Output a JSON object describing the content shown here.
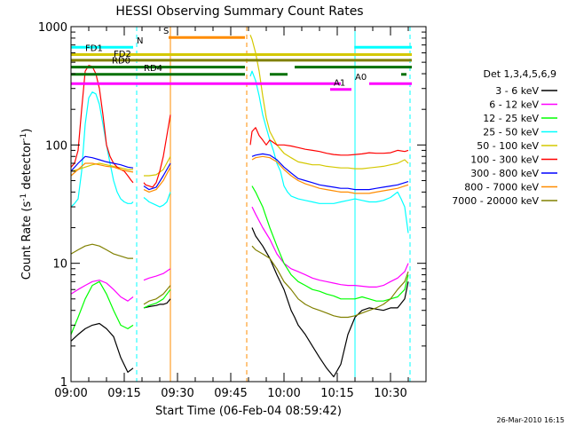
{
  "chart_data": {
    "type": "line",
    "title": "HESSI Observing Summary Count Rates",
    "xlabel": "Start Time (06-Feb-04 08:59:42)",
    "ylabel_main": "Count Rate (s",
    "ylabel_sup1": "-1",
    "ylabel_mid": " detector",
    "ylabel_sup2": "-1",
    "ylabel_end": ")",
    "yscale": "log",
    "ylim": [
      1,
      1000
    ],
    "xlim_minutes": [
      0,
      100
    ],
    "x_ticks": [
      "09:00",
      "09:15",
      "09:30",
      "09:45",
      "10:00",
      "10:15",
      "10:30"
    ],
    "y_ticks": [
      "1",
      "10",
      "100",
      "1000"
    ],
    "timestamp": "26-Mar-2010 16:15",
    "legend": {
      "title": "Det 1,3,4,5,6,9",
      "entries": [
        {
          "label": "3 - 6 keV",
          "color": "#000000"
        },
        {
          "label": "6 - 12 keV",
          "color": "#ff00ff"
        },
        {
          "label": "12 - 25 keV",
          "color": "#00ff00"
        },
        {
          "label": "25 - 50 keV",
          "color": "#00ffff"
        },
        {
          "label": "50 - 100 keV",
          "color": "#d4c800"
        },
        {
          "label": "100 - 300 keV",
          "color": "#ff0000"
        },
        {
          "label": "300 - 800 keV",
          "color": "#0000ff"
        },
        {
          "label": "800 - 7000 keV",
          "color": "#ff8c00"
        },
        {
          "label": "7000 - 20000 keV",
          "color": "#808000"
        }
      ]
    },
    "flag_bars": [
      {
        "label": "N",
        "color": "#00ffff",
        "y": 670,
        "segments": [
          [
            0,
            17.5
          ],
          [
            79.8,
            96
          ]
        ]
      },
      {
        "label": "S",
        "color": "#ff8c00",
        "y": 810,
        "segments": [
          [
            27.5,
            49
          ]
        ]
      },
      {
        "label": "FD1",
        "color": "#d4c800",
        "y": 580,
        "segments": [
          [
            0,
            96
          ]
        ]
      },
      {
        "label": "FD2",
        "color": "#808000",
        "y": 520,
        "segments": [
          [
            0,
            96
          ]
        ]
      },
      {
        "label": "RD0",
        "color": "#007000",
        "y": 455,
        "segments": [
          [
            0,
            49
          ],
          [
            63,
            96
          ]
        ]
      },
      {
        "label": "RD4",
        "color": "#007000",
        "y": 395,
        "segments": [
          [
            0,
            49
          ],
          [
            56,
            61
          ],
          [
            93,
            94.5
          ]
        ]
      },
      {
        "label": "A0",
        "color": "#ff00ff",
        "y": 330,
        "segments": [
          [
            0,
            76
          ],
          [
            84,
            96
          ]
        ]
      },
      {
        "label": "A1",
        "color": "#ff00ff",
        "y": 295,
        "segments": [
          [
            73,
            79
          ]
        ]
      }
    ],
    "vertical_markers": [
      {
        "x": 18.5,
        "color": "#00ffff",
        "style": "dashed"
      },
      {
        "x": 28,
        "color": "#ff8c00",
        "style": "solid"
      },
      {
        "x": 49.5,
        "color": "#ff8c00",
        "style": "dashed"
      },
      {
        "x": 80,
        "color": "#00ffff",
        "style": "solid"
      },
      {
        "x": 95.5,
        "color": "#00ffff",
        "style": "dashed"
      }
    ],
    "series": [
      {
        "name": "3 - 6 keV",
        "color": "#000000",
        "x": [
          0,
          2,
          4,
          6,
          8,
          10,
          12,
          14,
          16,
          17.5,
          18,
          19,
          20,
          20.5,
          22,
          24,
          25,
          26,
          27,
          28,
          50,
          51,
          52,
          54,
          56,
          58,
          60,
          62,
          63,
          64,
          66,
          68,
          70,
          72,
          74,
          76,
          78,
          80,
          82,
          84,
          86,
          88,
          90,
          92,
          94,
          95
        ],
        "y": [
          2.2,
          2.5,
          2.8,
          3.0,
          3.1,
          2.8,
          2.4,
          1.6,
          1.2,
          1.3,
          null,
          null,
          null,
          4.2,
          4.3,
          4.4,
          4.5,
          4.5,
          4.6,
          5.0,
          null,
          20,
          17,
          14,
          11,
          8,
          6,
          4,
          3.5,
          3,
          2.5,
          2,
          1.6,
          1.3,
          1.1,
          1.4,
          2.5,
          3.5,
          4,
          4.2,
          4.1,
          4.0,
          4.2,
          4.2,
          5.0,
          7.0
        ]
      },
      {
        "name": "6 - 12 keV",
        "color": "#ff00ff",
        "x": [
          0,
          2,
          4,
          6,
          8,
          10,
          12,
          14,
          16,
          17.5,
          18,
          19,
          20,
          20.5,
          22,
          24,
          26,
          28,
          50,
          51,
          52,
          54,
          56,
          58,
          60,
          62,
          64,
          66,
          68,
          70,
          72,
          74,
          76,
          78,
          80,
          82,
          84,
          86,
          88,
          90,
          92,
          94,
          95
        ],
        "y": [
          5.5,
          6.0,
          6.5,
          7.0,
          7.2,
          6.8,
          6.0,
          5.2,
          4.8,
          5.2,
          null,
          null,
          null,
          7.2,
          7.5,
          7.8,
          8.2,
          9.0,
          null,
          30,
          26,
          20,
          16,
          12,
          10,
          9,
          8.5,
          8.0,
          7.5,
          7.2,
          7.0,
          6.8,
          6.6,
          6.5,
          6.5,
          6.4,
          6.3,
          6.3,
          6.5,
          7.0,
          7.5,
          8.5,
          10
        ]
      },
      {
        "name": "12 - 25 keV",
        "color": "#00ff00",
        "x": [
          0,
          2,
          4,
          6,
          8,
          10,
          12,
          14,
          16,
          17.5,
          18,
          19,
          20,
          20.5,
          22,
          24,
          26,
          28,
          50,
          51,
          52,
          54,
          56,
          58,
          60,
          62,
          64,
          66,
          68,
          70,
          72,
          74,
          76,
          78,
          80,
          82,
          84,
          86,
          88,
          90,
          92,
          94,
          95
        ],
        "y": [
          2.5,
          3.5,
          5.0,
          6.5,
          7.0,
          5.5,
          4.0,
          3.0,
          2.8,
          3.0,
          null,
          null,
          null,
          4.2,
          4.4,
          4.6,
          5.0,
          6.0,
          null,
          45,
          40,
          30,
          20,
          14,
          10,
          8,
          7,
          6.5,
          6,
          5.8,
          5.5,
          5.3,
          5.0,
          5.0,
          5.0,
          5.2,
          5.0,
          4.8,
          4.8,
          5.0,
          5.2,
          6.0,
          8.0
        ]
      },
      {
        "name": "25 - 50 keV",
        "color": "#00ffff",
        "x": [
          0,
          1,
          2,
          3,
          4,
          5,
          6,
          7,
          8,
          9,
          10,
          11,
          12,
          13,
          14,
          15,
          16,
          17,
          17.5,
          18,
          19,
          20,
          20.5,
          21,
          22,
          23,
          24,
          25,
          26,
          27,
          28,
          50,
          50.5,
          51,
          52,
          53,
          54,
          55,
          56,
          57,
          58,
          59,
          60,
          61,
          62,
          64,
          66,
          68,
          70,
          72,
          74,
          76,
          78,
          80,
          82,
          84,
          86,
          88,
          90,
          92,
          93,
          94,
          95
        ],
        "y": [
          30,
          32,
          35,
          60,
          150,
          250,
          280,
          270,
          220,
          150,
          100,
          70,
          50,
          40,
          35,
          33,
          32,
          32,
          33,
          null,
          null,
          null,
          36,
          35,
          33,
          32,
          31,
          30,
          31,
          33,
          40,
          null,
          380,
          420,
          350,
          260,
          180,
          140,
          110,
          90,
          70,
          60,
          45,
          40,
          37,
          35,
          34,
          33,
          32,
          32,
          32,
          33,
          34,
          35,
          34,
          33,
          33,
          34,
          36,
          40,
          35,
          30,
          18
        ]
      },
      {
        "name": "50 - 100 keV",
        "color": "#d4c800",
        "x": [
          0,
          2,
          4,
          6,
          8,
          10,
          12,
          14,
          16,
          17.5,
          18,
          19,
          20,
          20.5,
          22,
          24,
          26,
          28,
          50,
          50.5,
          51,
          52,
          53,
          54,
          55,
          56,
          58,
          60,
          62,
          64,
          66,
          68,
          70,
          72,
          74,
          76,
          78,
          80,
          82,
          84,
          86,
          88,
          90,
          92,
          94,
          95
        ],
        "y": [
          60,
          62,
          65,
          68,
          70,
          68,
          66,
          64,
          62,
          62,
          null,
          null,
          null,
          55,
          55,
          56,
          62,
          80,
          null,
          850,
          780,
          600,
          420,
          260,
          170,
          130,
          100,
          85,
          78,
          72,
          70,
          68,
          68,
          66,
          65,
          64,
          64,
          63,
          63,
          64,
          65,
          66,
          68,
          70,
          75,
          70
        ]
      },
      {
        "name": "100 - 300 keV",
        "color": "#ff0000",
        "x": [
          0,
          1,
          2,
          3,
          4,
          5,
          6,
          7,
          8,
          9,
          10,
          11,
          12,
          13,
          14,
          15,
          16,
          17,
          17.5,
          18,
          19,
          20,
          20.5,
          21,
          22,
          23,
          24,
          25,
          26,
          27,
          28,
          50,
          50.5,
          51,
          52,
          53,
          54,
          55,
          56,
          57,
          58,
          60,
          62,
          64,
          66,
          68,
          70,
          72,
          74,
          76,
          78,
          80,
          82,
          84,
          86,
          88,
          90,
          92,
          94,
          95
        ],
        "y": [
          65,
          70,
          90,
          200,
          420,
          470,
          460,
          400,
          300,
          180,
          100,
          80,
          70,
          65,
          62,
          60,
          55,
          50,
          48,
          null,
          null,
          null,
          48,
          46,
          45,
          44,
          48,
          60,
          80,
          120,
          180,
          null,
          100,
          130,
          140,
          120,
          110,
          100,
          110,
          105,
          100,
          100,
          98,
          95,
          92,
          90,
          88,
          85,
          83,
          82,
          82,
          83,
          84,
          86,
          85,
          85,
          86,
          90,
          88,
          90
        ]
      },
      {
        "name": "300 - 800 keV",
        "color": "#0000ff",
        "x": [
          0,
          2,
          4,
          6,
          8,
          10,
          12,
          14,
          16,
          17.5,
          18,
          19,
          20,
          20.5,
          22,
          24,
          26,
          28,
          50,
          51,
          52,
          54,
          56,
          58,
          60,
          62,
          64,
          66,
          68,
          70,
          72,
          74,
          76,
          78,
          80,
          82,
          84,
          86,
          88,
          90,
          92,
          94,
          95
        ],
        "y": [
          60,
          70,
          80,
          78,
          75,
          72,
          70,
          68,
          65,
          64,
          null,
          null,
          null,
          45,
          42,
          44,
          55,
          70,
          null,
          80,
          82,
          84,
          82,
          75,
          65,
          58,
          52,
          50,
          48,
          46,
          45,
          44,
          43,
          43,
          42,
          42,
          42,
          43,
          44,
          45,
          46,
          48,
          49
        ]
      },
      {
        "name": "800 - 7000 keV",
        "color": "#ff8c00",
        "x": [
          0,
          2,
          4,
          6,
          8,
          10,
          12,
          14,
          16,
          17.5,
          18,
          19,
          20,
          20.5,
          22,
          24,
          26,
          28,
          50,
          51,
          52,
          54,
          56,
          58,
          60,
          62,
          64,
          66,
          68,
          70,
          72,
          74,
          76,
          78,
          80,
          82,
          84,
          86,
          88,
          90,
          92,
          94,
          95
        ],
        "y": [
          55,
          62,
          70,
          70,
          68,
          66,
          65,
          62,
          60,
          59,
          null,
          null,
          null,
          42,
          40,
          42,
          50,
          65,
          null,
          75,
          78,
          80,
          78,
          72,
          62,
          55,
          50,
          47,
          45,
          43,
          42,
          41,
          40,
          40,
          39,
          39,
          39,
          40,
          41,
          42,
          43,
          45,
          46
        ]
      },
      {
        "name": "7000 - 20000 keV",
        "color": "#808000",
        "x": [
          0,
          2,
          4,
          6,
          8,
          10,
          12,
          14,
          16,
          17.5,
          18,
          19,
          20,
          20.5,
          22,
          24,
          26,
          28,
          50,
          51,
          52,
          54,
          56,
          58,
          60,
          62,
          64,
          66,
          68,
          70,
          72,
          74,
          76,
          78,
          80,
          82,
          84,
          86,
          88,
          90,
          92,
          94,
          95
        ],
        "y": [
          12,
          13,
          14,
          14.5,
          14,
          13,
          12,
          11.5,
          11,
          11,
          null,
          null,
          null,
          4.5,
          4.8,
          5.0,
          5.5,
          6.5,
          null,
          14,
          13,
          12,
          11,
          9,
          7,
          6,
          5,
          4.5,
          4.2,
          4.0,
          3.8,
          3.6,
          3.5,
          3.5,
          3.6,
          3.8,
          4.0,
          4.2,
          4.5,
          5,
          6,
          7,
          8.5
        ]
      }
    ]
  }
}
